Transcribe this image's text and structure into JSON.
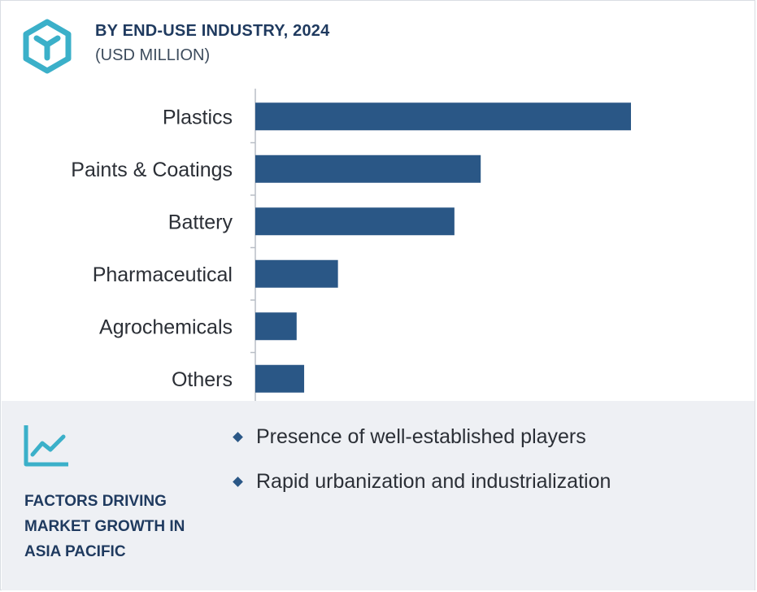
{
  "header": {
    "title": "BY END-USE INDUSTRY, 2024",
    "subtitle": "(USD MILLION)",
    "logo_icon": "cube-hexagon-icon"
  },
  "colors": {
    "bar": "#2a5786",
    "accent": "#3bb0c9",
    "title": "#1f3a5f",
    "panel": "#eef0f4"
  },
  "chart_data": {
    "type": "bar",
    "orientation": "horizontal",
    "title": "BY END-USE INDUSTRY, 2024",
    "subtitle": "(USD MILLION)",
    "categories": [
      "Plastics",
      "Paints & Coatings",
      "Battery",
      "Pharmaceutical",
      "Agrochemicals",
      "Others"
    ],
    "values": [
      100,
      60,
      53,
      22,
      11,
      13
    ],
    "xlabel": "",
    "ylabel": "",
    "xlim": [
      0,
      100
    ],
    "grid": false,
    "legend": "none",
    "value_axis_visible": false
  },
  "factors": {
    "icon": "trend-line-icon",
    "title": "FACTORS DRIVING\nMARKET  GROWTH IN\nASIA PACIFIC",
    "items": [
      "Presence of well-established players",
      "Rapid urbanization and industrialization"
    ]
  }
}
